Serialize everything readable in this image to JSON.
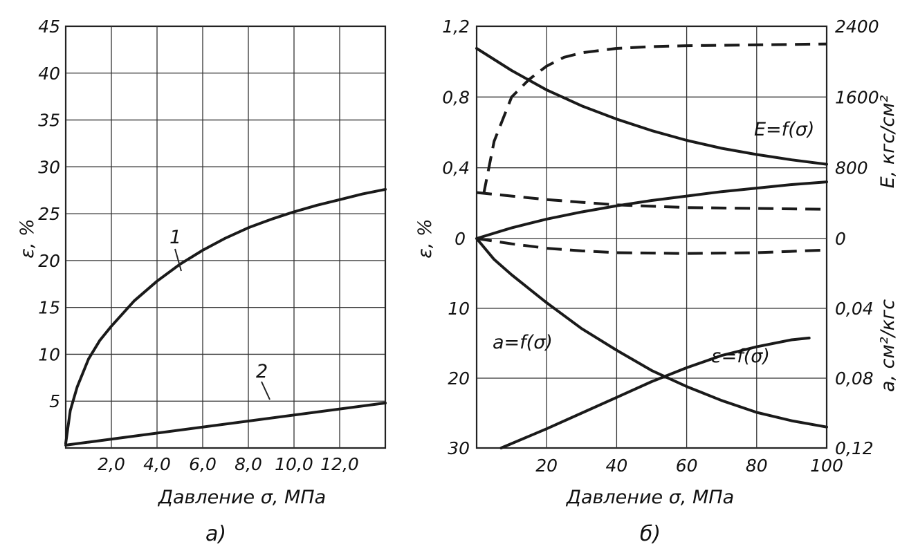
{
  "chart_data": [
    {
      "panel": "а)",
      "type": "line",
      "xlabel": "Давление σ, МПа",
      "ylabel": "ε, %",
      "xlim": [
        0,
        14
      ],
      "ylim": [
        0,
        45
      ],
      "x_ticks": [
        "2,0",
        "4,0",
        "6,0",
        "8,0",
        "10,0",
        "12,0"
      ],
      "x_tick_values": [
        2,
        4,
        6,
        8,
        10,
        12
      ],
      "y_ticks": [
        "5",
        "10",
        "15",
        "20",
        "25",
        "30",
        "35",
        "40",
        "45"
      ],
      "y_tick_values": [
        5,
        10,
        15,
        20,
        25,
        30,
        35,
        40,
        45
      ],
      "grid": true,
      "series": [
        {
          "name": "1",
          "x": [
            0,
            0.2,
            0.5,
            1,
            1.5,
            2,
            3,
            4,
            5,
            6,
            7,
            8,
            9,
            10,
            11,
            12,
            13,
            14
          ],
          "y": [
            0.5,
            4,
            6.5,
            9.5,
            11.5,
            13,
            15.7,
            17.8,
            19.6,
            21.1,
            22.4,
            23.5,
            24.4,
            25.2,
            25.9,
            26.5,
            27.1,
            27.6
          ]
        },
        {
          "name": "2",
          "x": [
            0,
            14
          ],
          "y": [
            0.3,
            4.8
          ]
        }
      ]
    },
    {
      "panel": "б)",
      "type": "line",
      "xlabel": "Давление σ, МПа",
      "x_ticks": [
        "20",
        "40",
        "60",
        "80",
        "100"
      ],
      "x_tick_values": [
        20,
        40,
        60,
        80,
        100
      ],
      "xlim": [
        0,
        100
      ],
      "grid": true,
      "y_left_label": "ε, %",
      "y_left_upper": {
        "ticks": [
          "0,4",
          "0,8",
          "1,2"
        ],
        "values": [
          0.4,
          0.8,
          1.2
        ]
      },
      "y_left_lower": {
        "ticks": [
          "10",
          "20",
          "30"
        ],
        "values": [
          10,
          20,
          30
        ]
      },
      "y_left_zero": "0",
      "y_right_upper_label": "E, кгс/см²",
      "y_right_upper": {
        "ticks": [
          "0",
          "800",
          "1600",
          "2400"
        ],
        "values": [
          0,
          800,
          1600,
          2400
        ]
      },
      "y_right_lower_label": "a, см²/кгс",
      "y_right_lower": {
        "ticks": [
          "0,04",
          "0,08",
          "0,12"
        ],
        "values": [
          0.04,
          0.08,
          0.12
        ]
      },
      "series": [
        {
          "name": "E=f(σ)",
          "style": "solid",
          "axis": "right-upper",
          "x": [
            0,
            10,
            20,
            30,
            40,
            50,
            60,
            70,
            80,
            90,
            100
          ],
          "y": [
            2150,
            1900,
            1680,
            1500,
            1350,
            1220,
            1110,
            1020,
            950,
            890,
            840
          ]
        },
        {
          "name": "ε=f(σ)",
          "style": "solid",
          "axis": "left-lower",
          "x": [
            0,
            5,
            10,
            20,
            30,
            40,
            50,
            60,
            70,
            80,
            90,
            100
          ],
          "y": [
            0,
            3,
            5.2,
            9.2,
            12.9,
            16,
            18.9,
            21.2,
            23.2,
            24.9,
            26.1,
            27
          ]
        },
        {
          "name": "a=f(σ)",
          "style": "solid",
          "axis": "right-lower",
          "x": [
            7,
            20,
            30,
            40,
            50,
            60,
            70,
            80,
            90,
            95
          ],
          "y": [
            0.12,
            0.109,
            0.1,
            0.091,
            0.082,
            0.074,
            0.067,
            0.062,
            0.058,
            0.057
          ]
        },
        {
          "style": "solid",
          "axis": "right-upper",
          "x": [
            0,
            10,
            20,
            30,
            40,
            50,
            60,
            70,
            80,
            90,
            100
          ],
          "y": [
            0,
            120,
            220,
            300,
            370,
            430,
            480,
            530,
            570,
            610,
            640
          ]
        },
        {
          "style": "dashed",
          "axis": "right-upper",
          "x": [
            2,
            5,
            10,
            15,
            20,
            25,
            30,
            40,
            50,
            60,
            80,
            100
          ],
          "y": [
            500,
            1100,
            1600,
            1800,
            1950,
            2050,
            2100,
            2150,
            2170,
            2180,
            2190,
            2200
          ]
        },
        {
          "style": "dashed",
          "axis": "right-upper",
          "x": [
            0,
            10,
            20,
            30,
            40,
            60,
            80,
            100
          ],
          "y": [
            520,
            480,
            440,
            410,
            380,
            350,
            340,
            330
          ]
        },
        {
          "style": "dashed",
          "axis": "right-upper",
          "x": [
            0,
            10,
            20,
            30,
            40,
            60,
            80,
            100
          ],
          "y": [
            0,
            -60,
            -110,
            -140,
            -160,
            -170,
            -160,
            -130
          ]
        }
      ]
    }
  ]
}
